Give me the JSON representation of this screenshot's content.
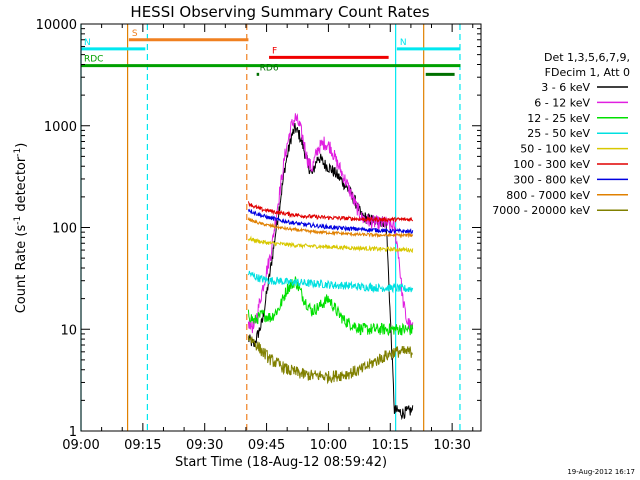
{
  "chart_data": {
    "type": "line",
    "title": "HESSI Observing Summary Count Rates",
    "xlabel": "Start Time (18-Aug-12 08:59:42)",
    "ylabel_main": "Count Rate (s",
    "ylabel_sup": "-1",
    "ylabel_mid": " detector",
    "ylabel_sup2": "-1",
    "ylabel_end": ")",
    "y_scale": "log",
    "ylim": [
      1,
      10000
    ],
    "xlim_minutes": [
      0,
      97
    ],
    "x_tick_labels": [
      "09:00",
      "09:15",
      "09:30",
      "09:45",
      "10:00",
      "10:15",
      "10:30"
    ],
    "x_tick_minutes": [
      0,
      15,
      30,
      45,
      60,
      75,
      90
    ],
    "y_tick_labels": [
      "1",
      "10",
      "100",
      "1000",
      "10000"
    ],
    "y_tick_values": [
      1,
      10,
      100,
      1000,
      10000
    ],
    "legend": {
      "header1": "Det 1,3,5,6,7,9,",
      "header2": "FDecim 1, Att 0",
      "placement": "right",
      "entries": [
        {
          "label": "3 - 6 keV",
          "color": "#000000"
        },
        {
          "label": "6 - 12 keV",
          "color": "#e020e0"
        },
        {
          "label": "12 - 25 keV",
          "color": "#00e000"
        },
        {
          "label": "25 - 50 keV",
          "color": "#00e0e0"
        },
        {
          "label": "50 - 100 keV",
          "color": "#d8c800"
        },
        {
          "label": "100 - 300 keV",
          "color": "#e00000"
        },
        {
          "label": "300 - 800 keV",
          "color": "#0000e0"
        },
        {
          "label": "800 - 7000 keV",
          "color": "#e08000"
        },
        {
          "label": "7000 - 20000 keV",
          "color": "#808000"
        }
      ]
    },
    "flag_bars": [
      {
        "label": "S",
        "color": "#f08020",
        "start": 11.6,
        "end": 40.6,
        "level": 7000
      },
      {
        "label": "N",
        "color": "#00e8f0",
        "start": 0,
        "end": 15.6,
        "level": 5700
      },
      {
        "label": "N",
        "color": "#00e8f0",
        "start": 76.6,
        "end": 92,
        "level": 5700
      },
      {
        "label": "F",
        "color": "#f00000",
        "start": 45.6,
        "end": 74.6,
        "level": 4700
      },
      {
        "label": "RDC",
        "color": "#00a000",
        "start": 0,
        "end": 92,
        "level": 3900
      },
      {
        "label": "RD6",
        "color": "#007000",
        "start": 42.6,
        "end": 43.2,
        "level": 3200
      },
      {
        "label": "",
        "color": "#007000",
        "start": 83.6,
        "end": 90.6,
        "level": 3200
      }
    ],
    "vlines": [
      {
        "minute": 0,
        "color": "#00e8f0",
        "dash": "solid"
      },
      {
        "minute": 11.3,
        "color": "#e08000",
        "dash": "solid"
      },
      {
        "minute": 16.1,
        "color": "#00e8f0",
        "dash": "dashed"
      },
      {
        "minute": 40.2,
        "color": "#f08020",
        "dash": "dashed"
      },
      {
        "minute": 76.3,
        "color": "#00e8f0",
        "dash": "solid"
      },
      {
        "minute": 83.1,
        "color": "#e08000",
        "dash": "solid"
      },
      {
        "minute": 91.9,
        "color": "#00e8f0",
        "dash": "dashed"
      }
    ],
    "data_window_minutes": [
      40.6,
      80.5
    ],
    "series": [
      {
        "name": "3 - 6 keV",
        "color": "#000000",
        "x": [
          40.6,
          42,
          44,
          46,
          48,
          49.5,
          51,
          52,
          53,
          54,
          55,
          56,
          57.5,
          59,
          60.5,
          62,
          63.5,
          65,
          66.5,
          68,
          70,
          72,
          74,
          76,
          78,
          80.5
        ],
        "y": [
          8,
          7,
          12,
          40,
          150,
          400,
          780,
          950,
          800,
          600,
          420,
          330,
          500,
          420,
          380,
          330,
          280,
          230,
          180,
          130,
          120,
          115,
          115,
          1.6,
          1.5,
          1.6
        ]
      },
      {
        "name": "6 - 12 keV",
        "color": "#e020e0",
        "x": [
          40.6,
          42,
          44,
          46,
          48,
          49.5,
          51,
          52,
          53,
          54,
          55,
          56,
          57.5,
          59,
          60.5,
          62,
          63.5,
          65,
          66.5,
          68,
          70,
          72,
          74,
          76,
          77,
          78,
          79,
          80.5
        ],
        "y": [
          12,
          10,
          25,
          55,
          200,
          520,
          1000,
          1200,
          1000,
          700,
          450,
          380,
          600,
          680,
          620,
          440,
          330,
          240,
          170,
          125,
          115,
          110,
          110,
          100,
          55,
          20,
          12,
          10
        ]
      },
      {
        "name": "12 - 25 keV",
        "color": "#00e000",
        "x": [
          40.6,
          42,
          44,
          46,
          48,
          50,
          52,
          54,
          56,
          58,
          60,
          62,
          64,
          66,
          68,
          70,
          72,
          74,
          76,
          78,
          80.5
        ],
        "y": [
          14,
          12,
          14,
          13,
          16,
          25,
          30,
          20,
          15,
          17,
          20,
          15,
          12,
          11,
          10,
          10,
          10,
          10,
          10,
          10,
          9.8
        ]
      },
      {
        "name": "25 - 50 keV",
        "color": "#00e0e0",
        "x": [
          40.6,
          42,
          44,
          46,
          48,
          50,
          52,
          54,
          56,
          58,
          60,
          62,
          64,
          66,
          68,
          70,
          72,
          74,
          76,
          78,
          80.5
        ],
        "y": [
          36,
          33,
          31,
          30,
          30,
          29,
          29,
          28.5,
          28,
          28,
          27.5,
          27,
          27,
          26.5,
          26,
          26,
          25.5,
          25.5,
          25.5,
          25,
          25
        ]
      },
      {
        "name": "50 - 100 keV",
        "color": "#d8c800",
        "x": [
          40.6,
          42,
          44,
          46,
          48,
          50,
          52,
          54,
          56,
          58,
          60,
          62,
          64,
          66,
          68,
          70,
          72,
          74,
          76,
          78,
          80.5
        ],
        "y": [
          78,
          75,
          72,
          70,
          69,
          68,
          67,
          66,
          65.5,
          65,
          64.5,
          64,
          63.5,
          63,
          62.5,
          62,
          61.5,
          61,
          61,
          60.5,
          60
        ]
      },
      {
        "name": "100 - 300 keV",
        "color": "#e00000",
        "x": [
          40.6,
          42,
          44,
          46,
          48,
          50,
          52,
          54,
          56,
          58,
          60,
          62,
          64,
          66,
          68,
          70,
          72,
          74,
          76,
          78,
          80.5
        ],
        "y": [
          175,
          160,
          150,
          145,
          140,
          136,
          133,
          130,
          128,
          126,
          125,
          124,
          123,
          122,
          121,
          120,
          120,
          120,
          120,
          120,
          120
        ]
      },
      {
        "name": "300 - 800 keV",
        "color": "#0000e0",
        "x": [
          40.6,
          42,
          44,
          46,
          48,
          50,
          52,
          54,
          56,
          58,
          60,
          62,
          64,
          66,
          68,
          70,
          72,
          74,
          76,
          78,
          80.5
        ],
        "y": [
          150,
          140,
          130,
          124,
          118,
          114,
          110,
          107,
          105,
          103,
          101,
          99,
          98,
          97,
          96,
          95,
          94,
          93,
          92,
          92,
          91
        ]
      },
      {
        "name": "800 - 7000 keV",
        "color": "#e08000",
        "x": [
          40.6,
          42,
          44,
          46,
          48,
          50,
          52,
          54,
          56,
          58,
          60,
          62,
          64,
          66,
          68,
          70,
          72,
          74,
          76,
          78,
          80.5
        ],
        "y": [
          122,
          114,
          108,
          104,
          100,
          97,
          95,
          93,
          91,
          90,
          89,
          88,
          87,
          86,
          85,
          85,
          84,
          84,
          84,
          84,
          84
        ]
      },
      {
        "name": "7000 - 20000 keV",
        "color": "#808000",
        "x": [
          40.6,
          42,
          44,
          46,
          48,
          50,
          52,
          54,
          56,
          58,
          60,
          62,
          64,
          66,
          68,
          70,
          72,
          74,
          76,
          78,
          80.5
        ],
        "y": [
          8.5,
          7.5,
          6,
          5,
          4.5,
          4,
          3.8,
          3.6,
          3.5,
          3.5,
          3.4,
          3.5,
          3.6,
          3.8,
          4,
          4.5,
          5,
          5.5,
          6,
          6,
          6
        ]
      }
    ],
    "footer_timestamp": "19-Aug-2012 16:17"
  }
}
